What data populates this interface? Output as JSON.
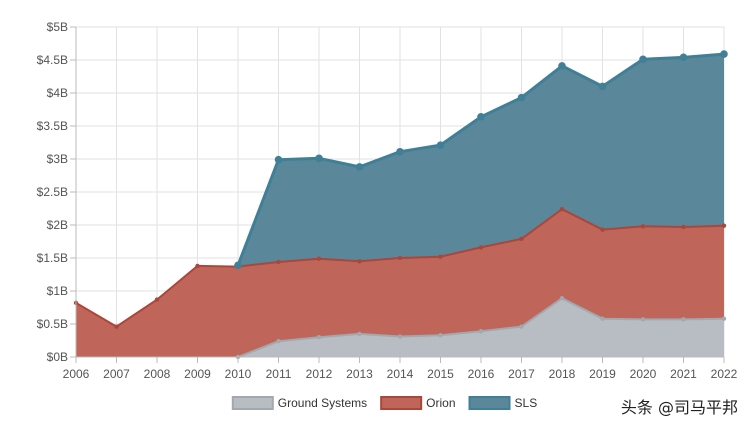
{
  "chart_data": {
    "type": "area",
    "stacked": true,
    "title": "",
    "xlabel": "",
    "ylabel": "",
    "categories": [
      "2006",
      "2007",
      "2008",
      "2009",
      "2010",
      "2011",
      "2012",
      "2013",
      "2014",
      "2015",
      "2016",
      "2017",
      "2018",
      "2019",
      "2020",
      "2021",
      "2022"
    ],
    "ylim": [
      0,
      5
    ],
    "yticks": [
      0,
      0.5,
      1,
      1.5,
      2,
      2.5,
      3,
      3.5,
      4,
      4.5,
      5
    ],
    "ytick_labels": [
      "$0B",
      "$0.5B",
      "$1B",
      "$1.5B",
      "$2B",
      "$2.5B",
      "$3B",
      "$3.5B",
      "$4B",
      "$4.5B",
      "$5B"
    ],
    "grid": true,
    "legend_position": "bottom",
    "series": [
      {
        "name": "Ground Systems",
        "fill": "#b8bdc4",
        "stroke": "#a3a8ae",
        "values": [
          null,
          null,
          null,
          null,
          0.0,
          0.24,
          0.3,
          0.35,
          0.31,
          0.33,
          0.39,
          0.46,
          0.89,
          0.58,
          0.57,
          0.57,
          0.58
        ]
      },
      {
        "name": "Orion",
        "fill": "#c0655a",
        "stroke": "#a9473b",
        "values": [
          0.82,
          0.46,
          0.87,
          1.38,
          1.37,
          1.2,
          1.19,
          1.1,
          1.19,
          1.19,
          1.27,
          1.33,
          1.35,
          1.35,
          1.41,
          1.4,
          1.41
        ]
      },
      {
        "name": "SLS",
        "fill": "#5a8799",
        "stroke": "#417f97",
        "values": [
          null,
          null,
          null,
          null,
          0.02,
          1.55,
          1.52,
          1.43,
          1.61,
          1.69,
          1.98,
          2.14,
          2.17,
          2.17,
          2.53,
          2.57,
          2.6
        ]
      }
    ]
  },
  "watermark": "头条 @司马平邦"
}
